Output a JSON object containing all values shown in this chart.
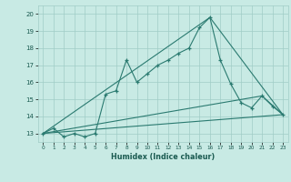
{
  "title": "",
  "xlabel": "Humidex (Indice chaleur)",
  "bg_color": "#c8eae4",
  "grid_color": "#a0cdc6",
  "line_color": "#2a7a70",
  "xlim": [
    -0.5,
    23.5
  ],
  "ylim": [
    12.5,
    20.5
  ],
  "yticks": [
    13,
    14,
    15,
    16,
    17,
    18,
    19,
    20
  ],
  "xticks": [
    0,
    1,
    2,
    3,
    4,
    5,
    6,
    7,
    8,
    9,
    10,
    11,
    12,
    13,
    14,
    15,
    16,
    17,
    18,
    19,
    20,
    21,
    22,
    23
  ],
  "series": [
    [
      0,
      13.0
    ],
    [
      1,
      13.3
    ],
    [
      2,
      12.8
    ],
    [
      3,
      13.0
    ],
    [
      4,
      12.8
    ],
    [
      5,
      13.0
    ],
    [
      6,
      15.3
    ],
    [
      7,
      15.5
    ],
    [
      8,
      17.3
    ],
    [
      9,
      16.0
    ],
    [
      10,
      16.5
    ],
    [
      11,
      17.0
    ],
    [
      12,
      17.3
    ],
    [
      13,
      17.7
    ],
    [
      14,
      18.0
    ],
    [
      15,
      19.2
    ],
    [
      16,
      19.8
    ],
    [
      17,
      17.3
    ],
    [
      18,
      15.9
    ],
    [
      19,
      14.8
    ],
    [
      20,
      14.5
    ],
    [
      21,
      15.2
    ],
    [
      22,
      14.6
    ],
    [
      23,
      14.1
    ]
  ],
  "line2": [
    [
      0,
      13.0
    ],
    [
      23,
      14.1
    ]
  ],
  "line3": [
    [
      0,
      13.0
    ],
    [
      16,
      19.8
    ],
    [
      23,
      14.1
    ]
  ],
  "line4": [
    [
      0,
      13.0
    ],
    [
      21,
      15.2
    ],
    [
      23,
      14.1
    ]
  ]
}
